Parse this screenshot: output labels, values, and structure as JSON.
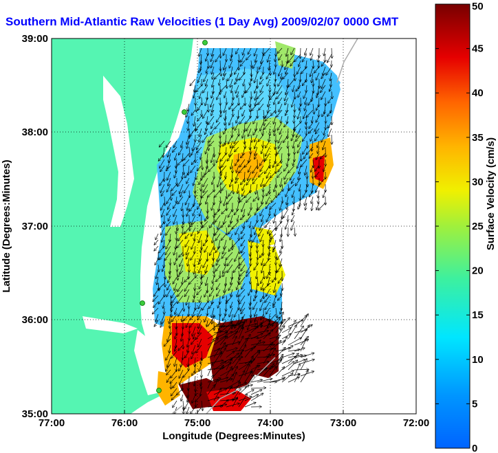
{
  "title": "Southern Mid-Atlantic Raw Velocities (1 Day Avg) 2009/02/07 0000 GMT",
  "axes": {
    "xlabel": "Longitude (Degrees:Minutes)",
    "ylabel": "Latitude (Degrees:Minutes)",
    "x_ticks": [
      "77:00",
      "76:00",
      "75:00",
      "74:00",
      "73:00",
      "72:00"
    ],
    "y_ticks": [
      "39:00",
      "38:00",
      "37:00",
      "36:00",
      "35:00"
    ]
  },
  "colorbar": {
    "label": "Surface Velocity (cm/s)",
    "ticks": [
      "0",
      "5",
      "10",
      "15",
      "20",
      "25",
      "30",
      "35",
      "40",
      "45",
      "50"
    ],
    "min": 0,
    "max": 50
  },
  "colors": {
    "land": "#55f5b2",
    "title": "#0000ff"
  },
  "chart_data": {
    "type": "heatmap",
    "title": "Southern Mid-Atlantic Raw Velocities (1 Day Avg) 2009/02/07 0000 GMT",
    "xlabel": "Longitude (Degrees:Minutes)",
    "ylabel": "Latitude (Degrees:Minutes)",
    "xlim": [
      -77,
      -72
    ],
    "ylim": [
      35,
      39
    ],
    "grid": true,
    "colorbar_range_cm_s": [
      0,
      50
    ]
  }
}
